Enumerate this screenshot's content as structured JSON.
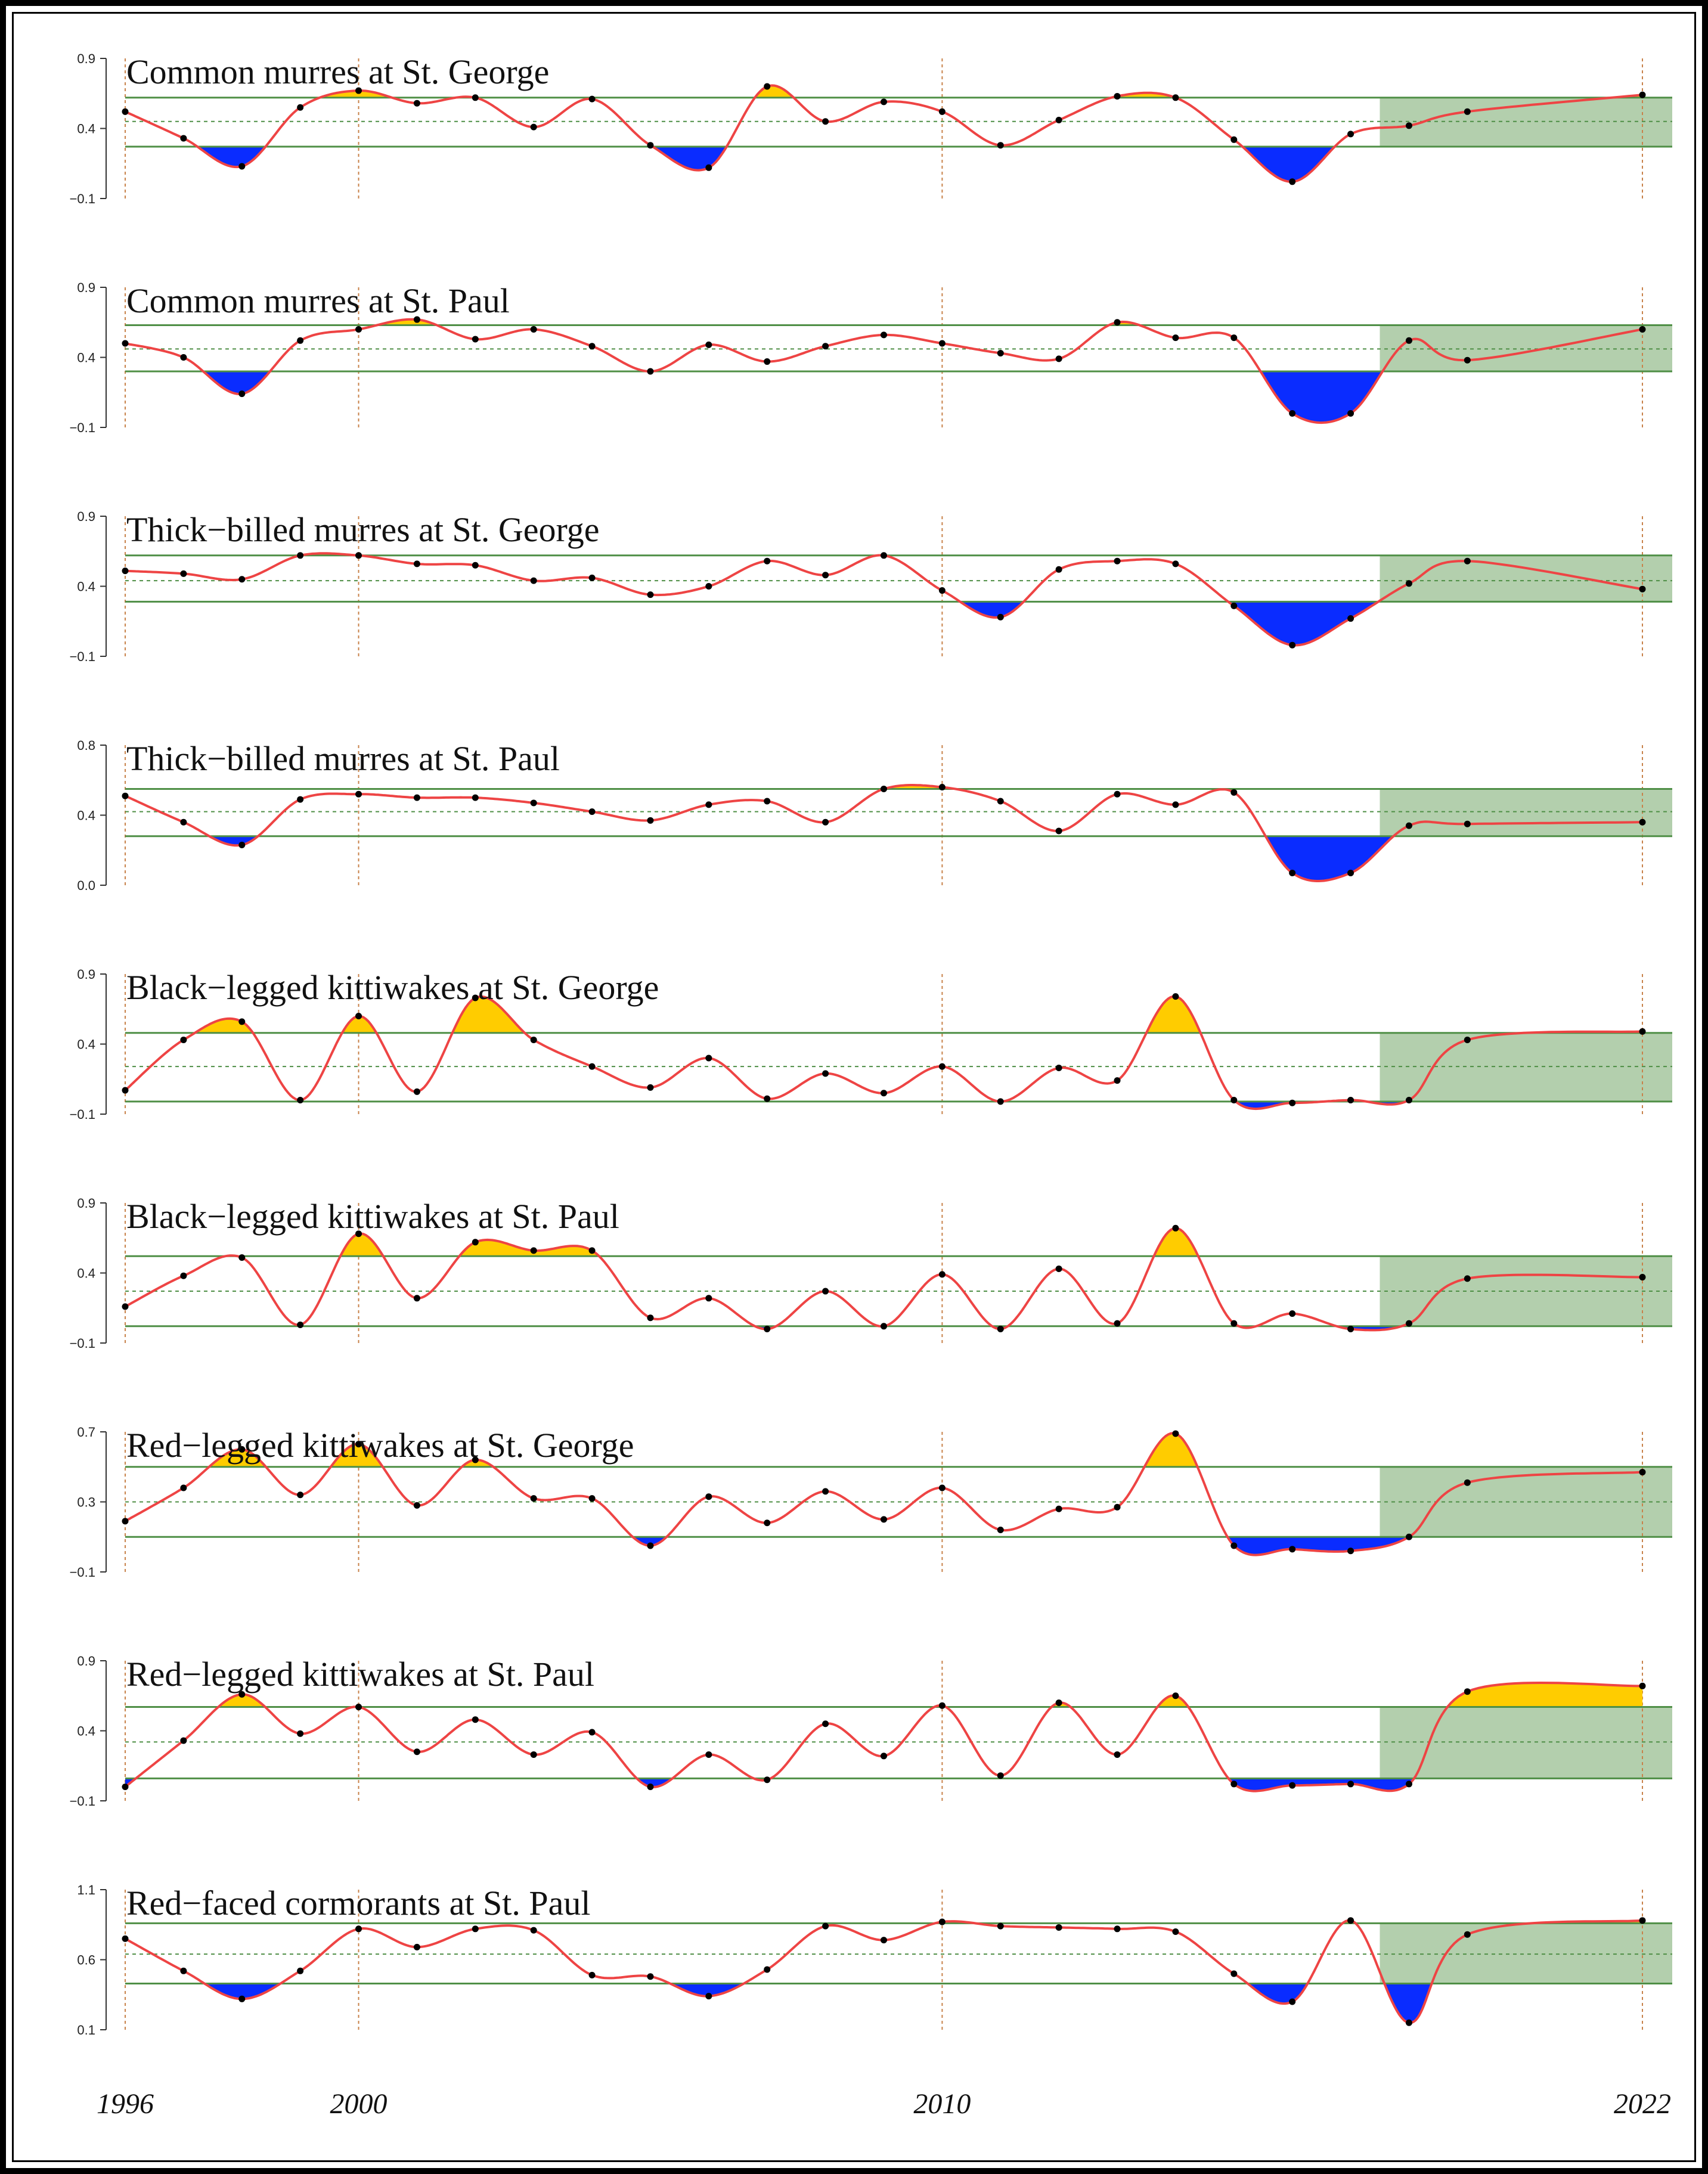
{
  "colors": {
    "line": "#ee4444",
    "above": "#ffcc00",
    "below": "#0a2cff",
    "band": "#4f8f46",
    "projection": "#b3cfad",
    "vgrid": "#c8824a",
    "point": "#000000"
  },
  "chart_data": {
    "type": "line",
    "x": [
      1996,
      1997,
      1998,
      1999,
      2000,
      2001,
      2002,
      2003,
      2004,
      2005,
      2006,
      2007,
      2008,
      2009,
      2010,
      2011,
      2012,
      2013,
      2014,
      2015,
      2016,
      2017,
      2018,
      2019,
      2022
    ],
    "x_ticks": [
      "1996",
      "2000",
      "2010",
      "2022"
    ],
    "vertical_gridlines": [
      1996,
      2000,
      2010,
      2022
    ],
    "projection_start": 2017.5,
    "panels": [
      {
        "name": "Common murres at St. George",
        "yticks": [
          "0.9",
          "0.4",
          "−0.1"
        ],
        "ylim": [
          -0.1,
          0.9
        ],
        "band": {
          "upper": 0.62,
          "mean": 0.45,
          "lower": 0.27
        },
        "values": [
          0.52,
          0.33,
          0.13,
          0.55,
          0.67,
          0.58,
          0.62,
          0.41,
          0.61,
          0.28,
          0.12,
          0.7,
          0.45,
          0.59,
          0.52,
          0.28,
          0.46,
          0.63,
          0.62,
          0.32,
          0.02,
          0.36,
          0.42,
          0.52,
          0.64
        ]
      },
      {
        "name": "Common murres at St. Paul",
        "yticks": [
          "0.9",
          "0.4",
          "−0.1"
        ],
        "ylim": [
          -0.1,
          0.9
        ],
        "band": {
          "upper": 0.63,
          "mean": 0.46,
          "lower": 0.3
        },
        "values": [
          0.5,
          0.4,
          0.14,
          0.52,
          0.6,
          0.67,
          0.53,
          0.6,
          0.48,
          0.3,
          0.49,
          0.37,
          0.48,
          0.56,
          0.5,
          0.43,
          0.39,
          0.65,
          0.54,
          0.54,
          0.0,
          0.0,
          0.52,
          0.38,
          0.6
        ]
      },
      {
        "name": "Thick−billed murres at St. George",
        "yticks": [
          "0.9",
          "0.4",
          "−0.1"
        ],
        "ylim": [
          -0.1,
          0.9
        ],
        "band": {
          "upper": 0.62,
          "mean": 0.44,
          "lower": 0.29
        },
        "values": [
          0.51,
          0.49,
          0.45,
          0.62,
          0.62,
          0.56,
          0.55,
          0.44,
          0.46,
          0.34,
          0.4,
          0.58,
          0.48,
          0.62,
          0.37,
          0.18,
          0.52,
          0.58,
          0.56,
          0.26,
          -0.02,
          0.17,
          0.42,
          0.58,
          0.38
        ]
      },
      {
        "name": "Thick−billed murres at St. Paul",
        "yticks": [
          "0.8",
          "0.4",
          "0.0"
        ],
        "ylim": [
          0.0,
          0.8
        ],
        "band": {
          "upper": 0.55,
          "mean": 0.42,
          "lower": 0.28
        },
        "values": [
          0.51,
          0.36,
          0.23,
          0.49,
          0.52,
          0.5,
          0.5,
          0.47,
          0.42,
          0.37,
          0.46,
          0.48,
          0.36,
          0.55,
          0.56,
          0.48,
          0.31,
          0.52,
          0.46,
          0.53,
          0.07,
          0.07,
          0.34,
          0.35,
          0.36
        ]
      },
      {
        "name": "Black−legged kittiwakes at St. George",
        "yticks": [
          "0.9",
          "0.4",
          "−0.1"
        ],
        "ylim": [
          -0.1,
          0.9
        ],
        "band": {
          "upper": 0.48,
          "mean": 0.24,
          "lower": -0.01
        },
        "values": [
          0.07,
          0.43,
          0.56,
          0.0,
          0.6,
          0.06,
          0.73,
          0.43,
          0.24,
          0.09,
          0.3,
          0.01,
          0.19,
          0.05,
          0.24,
          -0.01,
          0.23,
          0.14,
          0.74,
          0.0,
          -0.02,
          0.0,
          0.0,
          0.43,
          0.49
        ]
      },
      {
        "name": "Black−legged kittiwakes at St. Paul",
        "yticks": [
          "0.9",
          "0.4",
          "−0.1"
        ],
        "ylim": [
          -0.1,
          0.9
        ],
        "band": {
          "upper": 0.52,
          "mean": 0.27,
          "lower": 0.02
        },
        "values": [
          0.16,
          0.38,
          0.51,
          0.03,
          0.68,
          0.22,
          0.62,
          0.56,
          0.56,
          0.08,
          0.22,
          0.0,
          0.27,
          0.02,
          0.39,
          0.0,
          0.43,
          0.04,
          0.72,
          0.04,
          0.11,
          0.0,
          0.04,
          0.36,
          0.37
        ]
      },
      {
        "name": "Red−legged kittiwakes at St. George",
        "yticks": [
          "0.7",
          "0.3",
          "−0.1"
        ],
        "ylim": [
          -0.1,
          0.7
        ],
        "band": {
          "upper": 0.5,
          "mean": 0.3,
          "lower": 0.1
        },
        "values": [
          0.19,
          0.38,
          0.6,
          0.34,
          0.63,
          0.28,
          0.54,
          0.32,
          0.32,
          0.05,
          0.33,
          0.18,
          0.36,
          0.2,
          0.38,
          0.14,
          0.26,
          0.27,
          0.69,
          0.05,
          0.03,
          0.02,
          0.1,
          0.41,
          0.47
        ]
      },
      {
        "name": "Red−legged kittiwakes at St. Paul",
        "yticks": [
          "0.9",
          "0.4",
          "−0.1"
        ],
        "ylim": [
          -0.1,
          0.9
        ],
        "band": {
          "upper": 0.57,
          "mean": 0.32,
          "lower": 0.06
        },
        "values": [
          0.0,
          0.33,
          0.66,
          0.38,
          0.57,
          0.25,
          0.48,
          0.23,
          0.39,
          0.0,
          0.23,
          0.05,
          0.45,
          0.22,
          0.58,
          0.08,
          0.6,
          0.23,
          0.65,
          0.02,
          0.01,
          0.02,
          0.02,
          0.68,
          0.72
        ]
      },
      {
        "name": "Red−faced cormorants at St. Paul",
        "yticks": [
          "1.1",
          "0.6",
          "0.1"
        ],
        "ylim": [
          0.1,
          1.1
        ],
        "band": {
          "upper": 0.86,
          "mean": 0.64,
          "lower": 0.43
        },
        "values": [
          0.75,
          0.52,
          0.32,
          0.52,
          0.82,
          0.69,
          0.82,
          0.81,
          0.49,
          0.48,
          0.34,
          0.53,
          0.84,
          0.74,
          0.87,
          0.84,
          0.83,
          0.82,
          0.8,
          0.5,
          0.3,
          0.88,
          0.15,
          0.78,
          0.88
        ]
      }
    ]
  }
}
